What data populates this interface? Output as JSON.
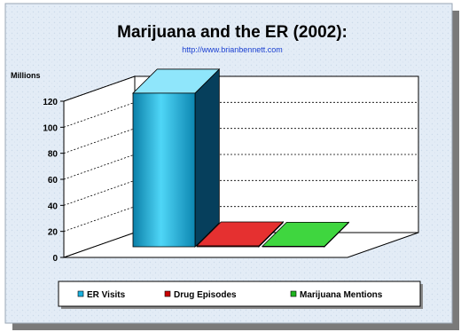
{
  "chart_data": {
    "type": "bar",
    "title": "Marijuana and the ER (2002):",
    "subtitle": "http://www.brianbennett.com",
    "y_unit_label": "Millions",
    "ylim": [
      0,
      120
    ],
    "y_ticks": [
      "0",
      "20",
      "40",
      "60",
      "80",
      "100",
      "120"
    ],
    "grid": true,
    "legend_position": "bottom",
    "series": [
      {
        "name": "ER Visits",
        "value": 118,
        "color": "#1ab2e0"
      },
      {
        "name": "Drug Episodes",
        "value": 0.67,
        "color": "#cc0000"
      },
      {
        "name": "Marijuana Mentions",
        "value": 0.12,
        "color": "#1fb51f"
      }
    ]
  }
}
